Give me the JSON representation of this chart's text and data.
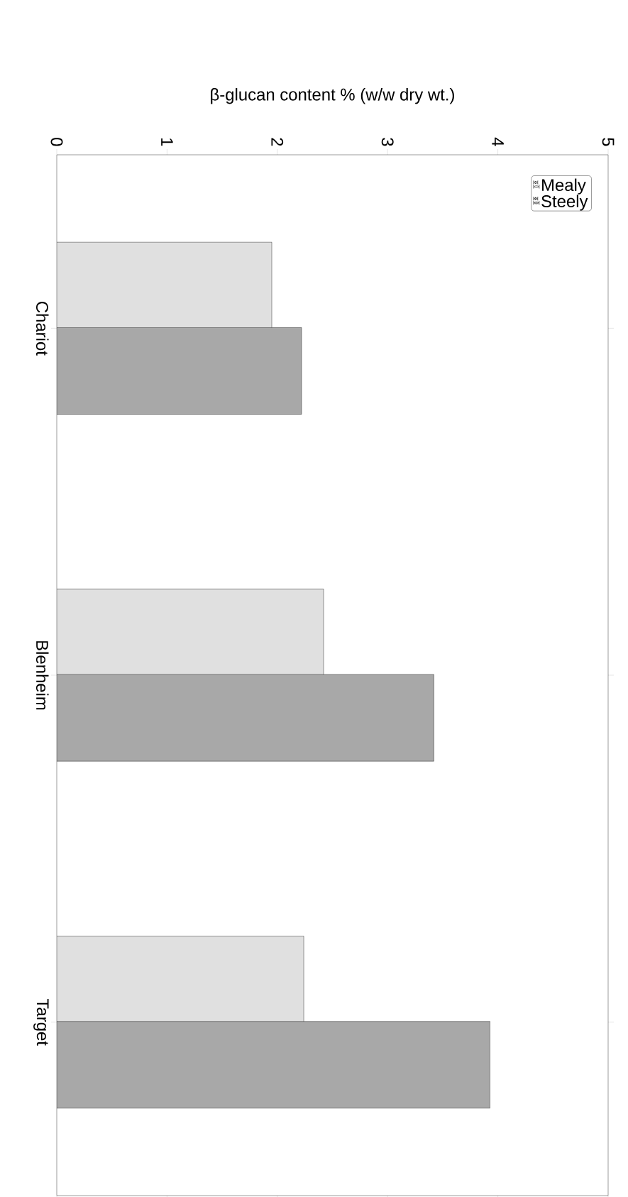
{
  "chart_data": {
    "type": "bar",
    "orientation": "horizontal",
    "xlabel": "β-glucan content % (w/w dry wt.)",
    "categories": [
      "Chariot",
      "Blenheim",
      "Target"
    ],
    "series": [
      {
        "name": "Mealy",
        "color": "#e0e0e0",
        "values": [
          1.95,
          2.42,
          2.24
        ]
      },
      {
        "name": "Steely",
        "color": "#a8a8a8",
        "values": [
          2.22,
          3.42,
          3.93
        ]
      }
    ],
    "xlim": [
      0,
      5
    ],
    "xticks": [
      0,
      1,
      2,
      3,
      4,
      5
    ],
    "legend": "top right"
  }
}
